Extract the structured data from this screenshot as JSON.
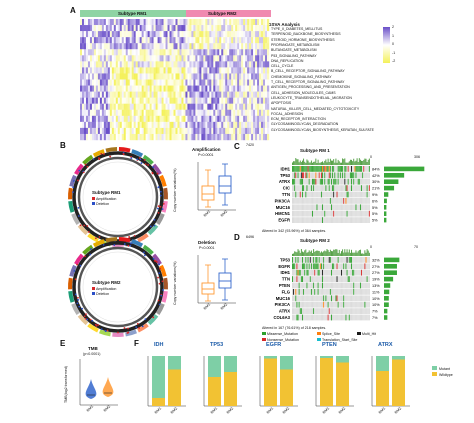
{
  "colors": {
    "rm1": "#8fd4a4",
    "rm2": "#f08ab0",
    "heat_low": "#f4f15a",
    "heat_mid": "#ffffff",
    "heat_high": "#6a4fc9",
    "mutant": "#7ecfa6",
    "wildtype": "#f2c233",
    "missense": "#2ca02c",
    "nonsense": "#d62728",
    "splice": "#ff7f0e",
    "translation": "#17becf",
    "box_rm1": "#ff9933",
    "box_rm2": "#3366cc"
  },
  "panelA": {
    "label": "A",
    "rm1_title": "Subtype RM1",
    "rm2_title": "Subtype RM2",
    "gsva_title": "GSVA Analysis",
    "legend_ticks": [
      "2",
      "1",
      "0",
      "-1",
      "-2"
    ],
    "pathways": [
      "TYPE_II_DIABETES_MELLITUS",
      "TERPENOID_BACKBONE_BIOSYNTHESIS",
      "STEROID_HORMONE_BIOSYNTHESIS",
      "PROPANOATE_METABOLISM",
      "BUTANOATE_METABOLISM",
      "P53_SIGNALING_PATHWAY",
      "DNA_REPLICATION",
      "CELL_CYCLE",
      "B_CELL_RECEPTOR_SIGNALING_PATHWAY",
      "CHEMOKINE_SIGNALING_PATHWAY",
      "T_CELL_RECEPTOR_SIGNALING_PATHWAY",
      "ANTIGEN_PROCESSING_AND_PRESENTATION",
      "CELL_ADHESION_MOLECULES_CAMS",
      "LEUKOCYTE_TRANSENDOTHELIAL_MIGRATION",
      "APOPTOSIS",
      "NATURAL_KILLER_CELL_MEDIATED_CYTOTOXICITY",
      "FOCAL_ADHESION",
      "ECM_RECEPTOR_INTERACTION",
      "GLYCOSAMINOGLYCAN_DEGRADATION",
      "GLYCOSAMINOGLYCAN_BIOSYNTHESIS_KERATAN_SULFATE"
    ]
  },
  "panelB": {
    "label": "B",
    "rm1_name": "Subtype RM1",
    "rm2_name": "Subtype RM2",
    "amp_label": "Amplification",
    "del_label": "Deletion",
    "amp_title": "Amplification",
    "amp_p": "P<0.0001",
    "del_title": "Deletion",
    "del_p": "P<0.0001",
    "ylabel": "Copy number variations(%)",
    "xcats": [
      "RM1",
      "RM2"
    ]
  },
  "panelC": {
    "label": "C",
    "title": "Subtype RM 1",
    "top_tick": "7420",
    "bar_ticks": [
      "0",
      "306"
    ],
    "genes": [
      "IDH1",
      "TP53",
      "ATRX",
      "CIC",
      "TTN",
      "PIK3CA",
      "MUC16",
      "HMCN1",
      "EGFR"
    ],
    "pcts": [
      "84%",
      "42%",
      "30%",
      "21%",
      "9%",
      "6%",
      "5%",
      "5%",
      "5%"
    ],
    "footer": "Altered in 342 (93.96%) of 364 samples."
  },
  "panelD": {
    "label": "D",
    "title": "Subtype RM 2",
    "top_tick": "6496",
    "bar_ticks": [
      "0",
      "70"
    ],
    "genes": [
      "TP53",
      "EGFR",
      "IDH1",
      "TTN",
      "PTEN",
      "FLG",
      "MUC16",
      "PIK3CA",
      "ATRX",
      "COL6A3"
    ],
    "pcts": [
      "32%",
      "27%",
      "27%",
      "19%",
      "13%",
      "11%",
      "10%",
      "10%",
      "7%",
      "7%"
    ],
    "footer": "Altered in 167 (76.61%) of 218 samples.",
    "legend": [
      "Missense_Mutation",
      "Splice_Site",
      "Multi_Hit",
      "Nonsense_Mutation",
      "Translation_Start_Site"
    ]
  },
  "panelE": {
    "label": "E",
    "title": "TMB",
    "p": "(p<0.0001)",
    "ylabel": "TMB(log2 transformed)",
    "xcats": [
      "RM1",
      "RM2"
    ]
  },
  "panelF": {
    "label": "F",
    "xcats": [
      "RM1",
      "RM2"
    ],
    "legend": [
      "Mutant",
      "Wildtype"
    ],
    "chart_data": [
      {
        "type": "bar",
        "title": "IDH",
        "categories": [
          "RM1",
          "RM2"
        ],
        "series": [
          {
            "name": "Mutant",
            "values": [
              0.84,
              0.27
            ]
          },
          {
            "name": "Wildtype",
            "values": [
              0.16,
              0.73
            ]
          }
        ],
        "ylim": [
          0,
          1
        ]
      },
      {
        "type": "bar",
        "title": "TP53",
        "categories": [
          "RM1",
          "RM2"
        ],
        "series": [
          {
            "name": "Mutant",
            "values": [
              0.42,
              0.32
            ]
          },
          {
            "name": "Wildtype",
            "values": [
              0.58,
              0.68
            ]
          }
        ],
        "ylim": [
          0,
          1
        ]
      },
      {
        "type": "bar",
        "title": "EGFR",
        "categories": [
          "RM1",
          "RM2"
        ],
        "series": [
          {
            "name": "Mutant",
            "values": [
              0.05,
              0.27
            ]
          },
          {
            "name": "Wildtype",
            "values": [
              0.95,
              0.73
            ]
          }
        ],
        "ylim": [
          0,
          1
        ]
      },
      {
        "type": "bar",
        "title": "PTEN",
        "categories": [
          "RM1",
          "RM2"
        ],
        "series": [
          {
            "name": "Mutant",
            "values": [
              0.04,
              0.13
            ]
          },
          {
            "name": "Wildtype",
            "values": [
              0.96,
              0.87
            ]
          }
        ],
        "ylim": [
          0,
          1
        ]
      },
      {
        "type": "bar",
        "title": "ATRX",
        "categories": [
          "RM1",
          "RM2"
        ],
        "series": [
          {
            "name": "Mutant",
            "values": [
              0.3,
              0.07
            ]
          },
          {
            "name": "Wildtype",
            "values": [
              0.7,
              0.93
            ]
          }
        ],
        "ylim": [
          0,
          1
        ]
      }
    ]
  }
}
